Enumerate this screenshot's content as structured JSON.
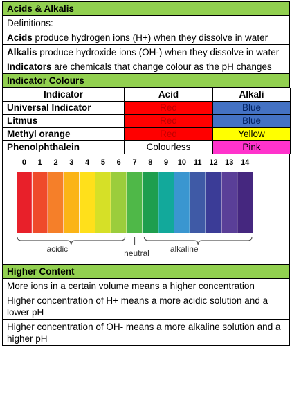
{
  "section1": {
    "title": "Acids & Alkalis",
    "definitions_label": "Definitions:",
    "rows": [
      {
        "bold": "Acids",
        "text": " produce hydrogen ions (H+) when they dissolve in water"
      },
      {
        "bold": "Alkalis",
        "text": " produce hydroxide ions (OH-) when they dissolve in water"
      },
      {
        "bold": "Indicators",
        "text": " are chemicals that change colour as the pH changes"
      }
    ]
  },
  "section2": {
    "title": "Indicator Colours",
    "headers": [
      "Indicator",
      "Acid",
      "Alkali"
    ],
    "rows": [
      {
        "name": "Universal Indicator",
        "acid": "Red",
        "acid_bg": "#ff0000",
        "acid_fg": "#c00000",
        "alkali": "Blue",
        "alkali_bg": "#4472c4",
        "alkali_fg": "#002060"
      },
      {
        "name": "Litmus",
        "acid": "Red",
        "acid_bg": "#ff0000",
        "acid_fg": "#c00000",
        "alkali": "Blue",
        "alkali_bg": "#4472c4",
        "alkali_fg": "#002060"
      },
      {
        "name": "Methyl orange",
        "acid": "Red",
        "acid_bg": "#ff0000",
        "acid_fg": "#c00000",
        "alkali": "Yellow",
        "alkali_bg": "#ffff00",
        "alkali_fg": "#000000"
      },
      {
        "name": "Phenolphthalein",
        "acid": "Colourless",
        "acid_bg": "#ffffff",
        "acid_fg": "#000000",
        "alkali": "Pink",
        "alkali_bg": "#ff33cc",
        "alkali_fg": "#000000"
      }
    ]
  },
  "ph_scale": {
    "labels": [
      "0",
      "1",
      "2",
      "3",
      "4",
      "5",
      "6",
      "7",
      "8",
      "9",
      "10",
      "11",
      "12",
      "13",
      "14"
    ],
    "colors": [
      "#e8202a",
      "#ef4a2b",
      "#f57f29",
      "#fbb416",
      "#ffe01b",
      "#d6e027",
      "#9bcd3c",
      "#4fb848",
      "#1e9e4e",
      "#12a99b",
      "#3a96d0",
      "#3f5aa6",
      "#3b3c97",
      "#5a3f98",
      "#45277f"
    ],
    "acidic_label": "acidic",
    "neutral_label": "neutral",
    "alkaline_label": "alkaline"
  },
  "section3": {
    "title": "Higher Content",
    "rows": [
      "More ions in a certain volume means a higher concentration",
      "Higher concentration of H+ means a more acidic solution and a lower pH",
      "Higher concentration of OH- means a more alkaline solution and a higher pH"
    ]
  }
}
